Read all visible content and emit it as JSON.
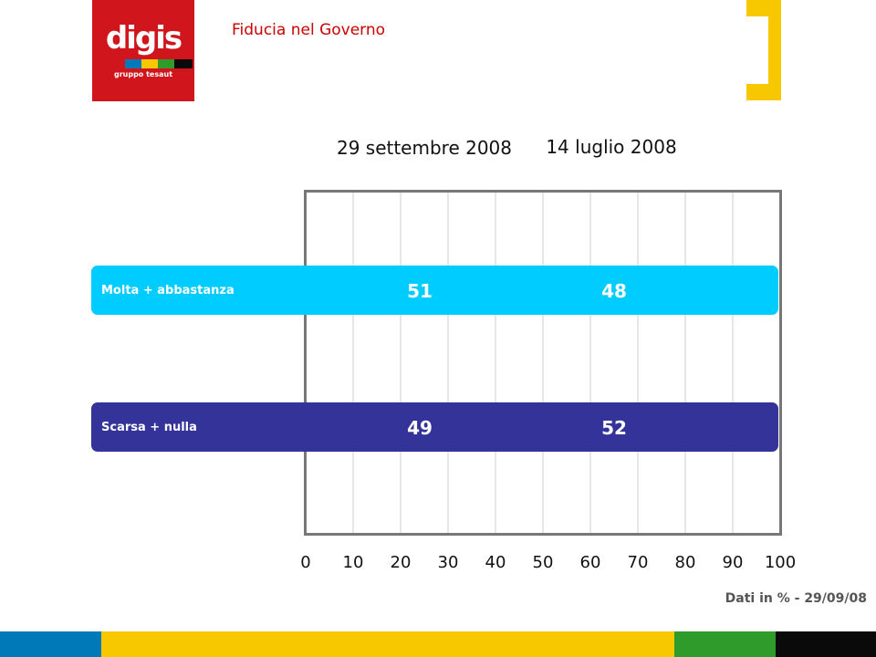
{
  "logo": {
    "name": "digis",
    "tagline": "gruppo tesaut"
  },
  "page_title": "Fiducia nel Governo",
  "footnote": "Dati in % - 29/09/08",
  "colors": {
    "title_red": "#cc0000",
    "logo_red": "#d0161c",
    "bracket_yellow": "#f7c800",
    "series1_cyan": "#00ccff",
    "series2_blue": "#333399",
    "grid_grey": "#cccccc",
    "frame_grey": "#777777",
    "footer": [
      "#0079b8",
      "#f7c800",
      "#2f9b2a",
      "#0a0a0a"
    ]
  },
  "chart_data": {
    "type": "table",
    "columns": [
      "29 settembre 2008",
      "14 luglio 2008"
    ],
    "rows": [
      {
        "name": "Molta + abbastanza",
        "values": [
          51,
          48
        ]
      },
      {
        "name": "Scarsa + nulla",
        "values": [
          49,
          52
        ]
      }
    ],
    "xlim": [
      0,
      100
    ],
    "x_ticks": [
      0,
      10,
      20,
      30,
      40,
      50,
      60,
      70,
      80,
      90,
      100
    ],
    "grid": true
  }
}
